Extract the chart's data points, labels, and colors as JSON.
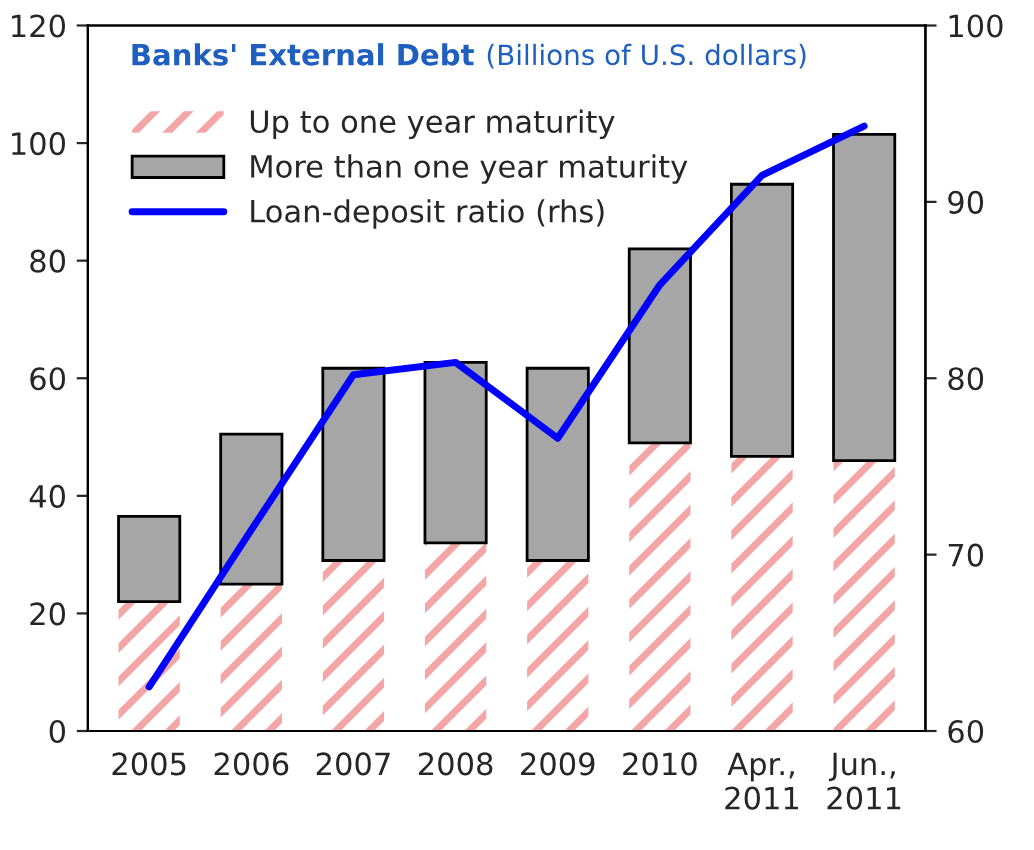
{
  "chart_data": {
    "type": "bar",
    "title": "Banks' External Debt",
    "subtitle": "(Billions of U.S. dollars)",
    "categories": [
      "2005",
      "2006",
      "2007",
      "2008",
      "2009",
      "2010",
      "Apr.,\n2011",
      "Jun.,\n2011"
    ],
    "stacked": true,
    "series": [
      {
        "name": "Up to one year maturity",
        "color": "#f4a6a6",
        "values": [
          22,
          25,
          29,
          32,
          29,
          49,
          46.7,
          46
        ]
      },
      {
        "name": "More than one year maturity",
        "color": "#a6a6a6",
        "values": [
          14.5,
          25.5,
          32.7,
          30.7,
          32.7,
          33,
          46.3,
          55.5
        ]
      },
      {
        "name": "Loan-deposit ratio (rhs)",
        "type": "line",
        "axis": "y2",
        "color": "#0000ff",
        "values": [
          62.5,
          71.4,
          80.2,
          80.9,
          76.6,
          85.3,
          91.5,
          94.3
        ]
      }
    ],
    "ylim": [
      0,
      120
    ],
    "yticks": [
      0,
      20,
      40,
      60,
      80,
      100,
      120
    ],
    "y2lim": [
      60,
      100
    ],
    "y2ticks": [
      60,
      70,
      80,
      90,
      100
    ],
    "legend": "top left",
    "grid": false
  }
}
